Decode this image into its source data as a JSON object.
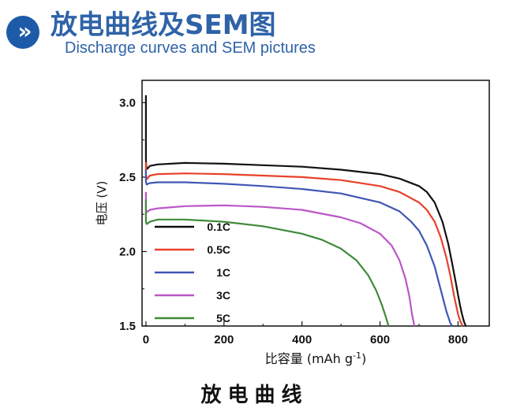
{
  "header": {
    "badge_icon": "double-chevron-right-icon",
    "badge_glyph": "»",
    "badge_color": "#1d5aa8",
    "title_cn": "放电曲线及SEM图",
    "title_en": "Discharge curves and SEM pictures",
    "title_color": "#2f63a8"
  },
  "caption": "放电曲线",
  "chart_data": {
    "type": "line",
    "xlabel": "比容量 (mAh g-1)",
    "ylabel": "电压 (V)",
    "xlim": [
      -10,
      880
    ],
    "ylim": [
      1.5,
      3.15
    ],
    "xticks": [
      0,
      200,
      400,
      600,
      800
    ],
    "yticks": [
      1.5,
      2.0,
      2.5,
      3.0
    ],
    "xtick_labels": [
      "0",
      "200",
      "400",
      "600",
      "800"
    ],
    "ytick_labels": [
      "1.5",
      "2.0",
      "2.5",
      "3.0"
    ],
    "grid": false,
    "legend_position": "lower-left",
    "series": [
      {
        "name": "0.1C",
        "color": "#111111",
        "x": [
          0,
          0,
          1,
          2,
          5,
          10,
          30,
          100,
          200,
          300,
          400,
          500,
          600,
          650,
          700,
          720,
          740,
          760,
          775,
          785,
          790,
          795,
          800,
          805,
          810,
          815,
          820
        ],
        "y": [
          3.05,
          2.62,
          2.57,
          2.555,
          2.56,
          2.575,
          2.585,
          2.595,
          2.59,
          2.58,
          2.57,
          2.55,
          2.52,
          2.49,
          2.44,
          2.4,
          2.33,
          2.2,
          2.05,
          1.92,
          1.85,
          1.78,
          1.71,
          1.64,
          1.58,
          1.53,
          1.5
        ]
      },
      {
        "name": "0.5C",
        "color": "#e8402a",
        "x": [
          0,
          0,
          2,
          5,
          10,
          30,
          100,
          200,
          300,
          400,
          500,
          600,
          650,
          700,
          720,
          740,
          755,
          770,
          780,
          790,
          800,
          806,
          812
        ],
        "y": [
          2.6,
          2.52,
          2.485,
          2.495,
          2.51,
          2.52,
          2.525,
          2.52,
          2.51,
          2.5,
          2.48,
          2.44,
          2.4,
          2.33,
          2.28,
          2.2,
          2.1,
          1.96,
          1.84,
          1.7,
          1.58,
          1.53,
          1.5
        ]
      },
      {
        "name": "1C",
        "color": "#3f56b5",
        "x": [
          0,
          0,
          2,
          5,
          10,
          30,
          100,
          200,
          300,
          400,
          500,
          600,
          650,
          680,
          700,
          720,
          740,
          750,
          760,
          770,
          780,
          785
        ],
        "y": [
          2.55,
          2.47,
          2.45,
          2.455,
          2.46,
          2.465,
          2.465,
          2.455,
          2.44,
          2.42,
          2.39,
          2.33,
          2.27,
          2.2,
          2.14,
          2.04,
          1.9,
          1.8,
          1.7,
          1.6,
          1.52,
          1.5
        ]
      },
      {
        "name": "3C",
        "color": "#bb55c8",
        "x": [
          0,
          0,
          2,
          5,
          10,
          30,
          100,
          200,
          300,
          400,
          500,
          550,
          600,
          630,
          650,
          665,
          675,
          682,
          688
        ],
        "y": [
          2.4,
          2.28,
          2.265,
          2.27,
          2.28,
          2.29,
          2.305,
          2.31,
          2.3,
          2.28,
          2.23,
          2.19,
          2.12,
          2.04,
          1.94,
          1.82,
          1.7,
          1.58,
          1.5
        ]
      },
      {
        "name": "5C",
        "color": "#3f8a3a",
        "x": [
          0,
          0,
          2,
          5,
          10,
          30,
          100,
          200,
          300,
          400,
          450,
          500,
          540,
          570,
          590,
          605,
          615,
          622
        ],
        "y": [
          2.35,
          2.2,
          2.185,
          2.19,
          2.2,
          2.215,
          2.215,
          2.2,
          2.17,
          2.12,
          2.08,
          2.02,
          1.94,
          1.84,
          1.74,
          1.64,
          1.56,
          1.5
        ]
      }
    ]
  }
}
